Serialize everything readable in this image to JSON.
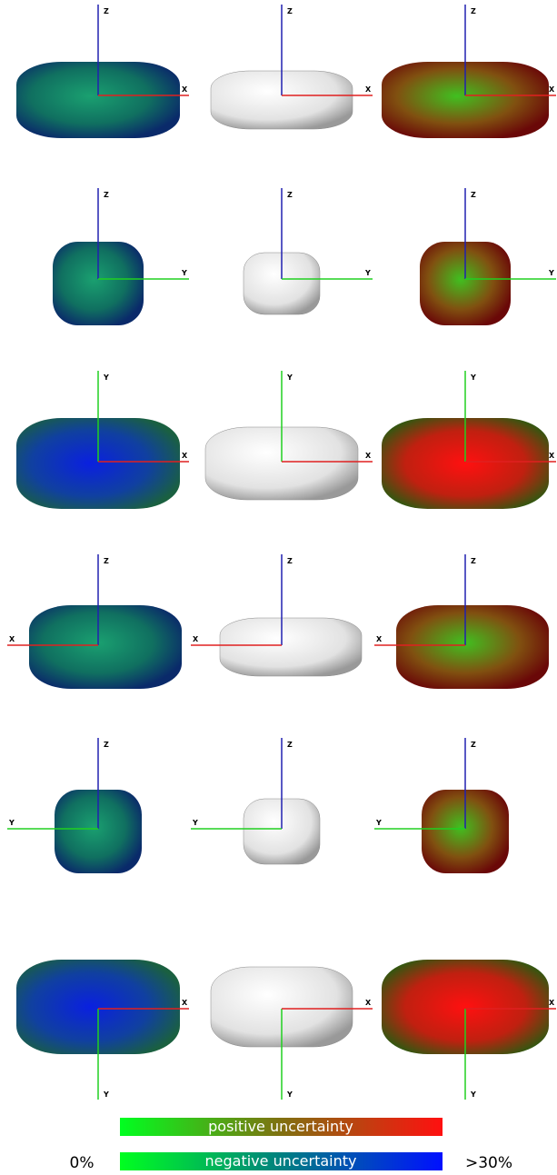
{
  "rows": [
    {
      "vertical_axis": "Z",
      "horizontal_axis": "X"
    },
    {
      "vertical_axis": "Z",
      "horizontal_axis": "Y"
    },
    {
      "vertical_axis": "Y",
      "horizontal_axis": "X"
    },
    {
      "vertical_axis": "Z",
      "horizontal_axis": "X"
    },
    {
      "vertical_axis": "Z",
      "horizontal_axis": "Y"
    },
    {
      "vertical_axis": "Y",
      "horizontal_axis": "X"
    }
  ],
  "legend": {
    "positive": "positive uncertainty",
    "negative": "negative uncertainty",
    "min": "0%",
    "max": ">30%"
  }
}
